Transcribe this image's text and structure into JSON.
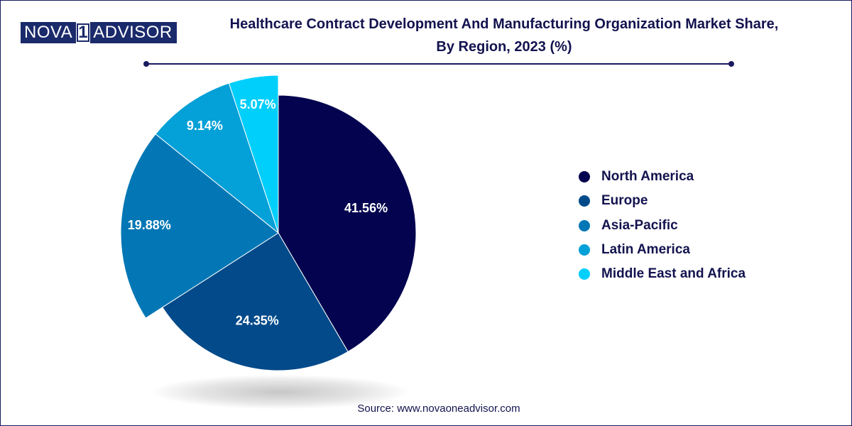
{
  "logo": {
    "part1": "NOVA",
    "part2": "1",
    "part3": "ADVISOR"
  },
  "title_line1": "Healthcare Contract Development And Manufacturing Organization Market Share,",
  "title_line2": "By Region, 2023 (%)",
  "source": "Source: www.novaoneadvisor.com",
  "colors": {
    "title": "#13134f",
    "rule": "#1a1a5e",
    "label_text": "#ffffff"
  },
  "chart_data": {
    "type": "pie",
    "title": "Healthcare Contract Development And Manufacturing Organization Market Share, By Region, 2023 (%)",
    "legend_position": "right",
    "slices": [
      {
        "label": "North America",
        "value": 41.56,
        "display": "41.56%",
        "color": "#03034f",
        "exploded": false
      },
      {
        "label": "Europe",
        "value": 24.35,
        "display": "24.35%",
        "color": "#024a8a",
        "exploded": false
      },
      {
        "label": "Asia-Pacific",
        "value": 19.88,
        "display": "19.88%",
        "color": "#0377b5",
        "exploded": true
      },
      {
        "label": "Latin America",
        "value": 9.14,
        "display": "9.14%",
        "color": "#04a0d8",
        "exploded": true
      },
      {
        "label": "Middle East and Africa",
        "value": 5.07,
        "display": "5.07%",
        "color": "#00cffc",
        "exploded": true
      }
    ]
  }
}
